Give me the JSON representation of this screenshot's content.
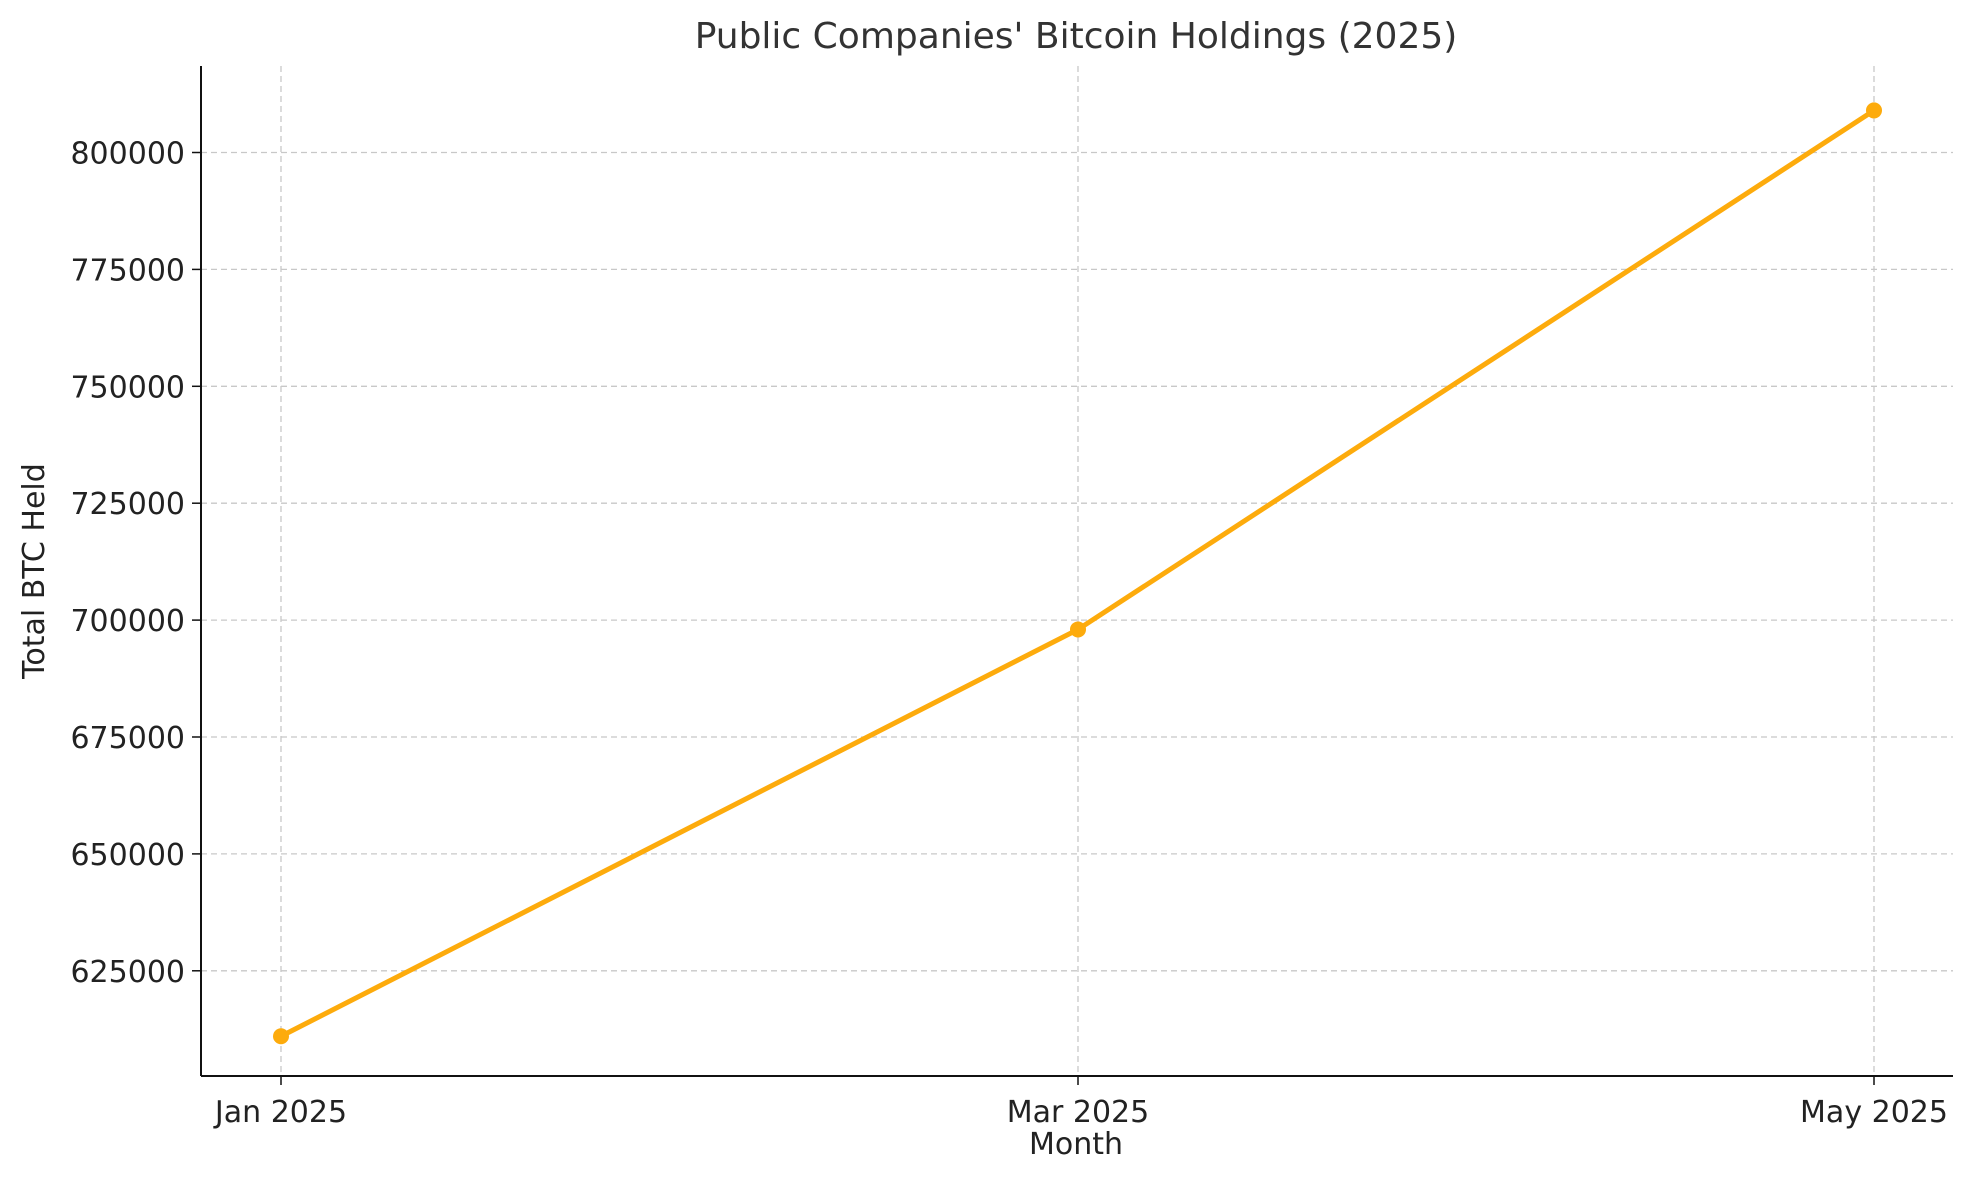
{
  "chart_data": {
    "type": "line",
    "title": "Public Companies' Bitcoin Holdings (2025)",
    "xlabel": "Month",
    "ylabel": "Total BTC Held",
    "categories": [
      "Jan 2025",
      "Mar 2025",
      "May 2025"
    ],
    "series": [
      {
        "values": [
          611000,
          698000,
          809000
        ],
        "color": "#FDAB0C",
        "marker": "circle"
      }
    ],
    "yticks": [
      625000,
      650000,
      675000,
      700000,
      725000,
      750000,
      775000,
      800000
    ],
    "ylim": [
      602500,
      818500
    ],
    "grid": true,
    "legend": "none"
  }
}
